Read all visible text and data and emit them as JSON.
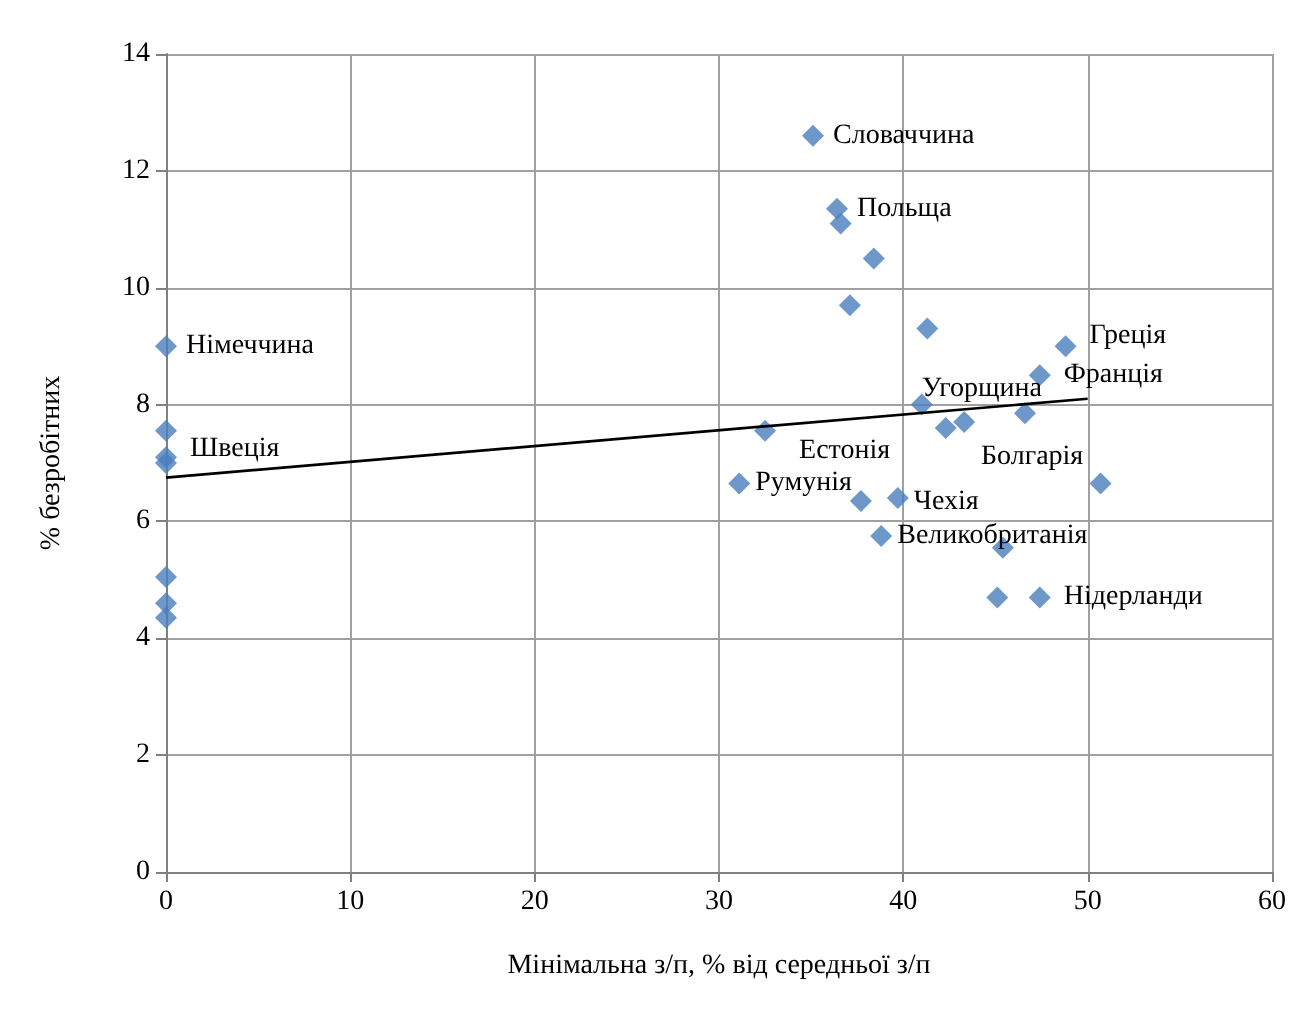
{
  "chart_data": {
    "type": "scatter",
    "xlabel": "Мінімальна з/п, % від середньої з/п",
    "ylabel": "% безробітних",
    "xlim": [
      0,
      60
    ],
    "xticks": [
      0,
      10,
      20,
      30,
      40,
      50,
      60
    ],
    "ylim": [
      0,
      14
    ],
    "yticks": [
      0,
      2,
      4,
      6,
      8,
      10,
      12,
      14
    ],
    "grid": true,
    "marker": "diamond",
    "series": [
      {
        "color": "#4a7ebb",
        "x": [
          0,
          0,
          0,
          0,
          0,
          0,
          0,
          35.1,
          36.4,
          36.6,
          38.4,
          37.1,
          41.3,
          48.8,
          47.4,
          41.0,
          42.3,
          43.3,
          46.6,
          32.5,
          50.7,
          31.1,
          37.7,
          39.7,
          38.8,
          45.4,
          45.1,
          47.4
        ],
        "values": [
          9.0,
          7.55,
          7.1,
          7.0,
          5.05,
          4.6,
          4.35,
          12.6,
          11.35,
          11.1,
          10.5,
          9.7,
          9.3,
          9.0,
          8.5,
          8.0,
          7.6,
          7.7,
          7.85,
          7.55,
          6.65,
          6.65,
          6.35,
          6.4,
          5.75,
          5.55,
          4.7,
          4.7
        ]
      },
      {
        "type": "line",
        "marker": "none",
        "color": "#000000",
        "x": [
          0,
          50
        ],
        "values": [
          6.75,
          8.1
        ]
      }
    ],
    "annotations": [
      {
        "text": "Німеччина",
        "x": 0,
        "y": 9.0
      },
      {
        "text": "Швеція",
        "x": 0,
        "y": 7.1
      },
      {
        "text": "Словаччина",
        "x": 35.1,
        "y": 12.6
      },
      {
        "text": "Польща",
        "x": 36.4,
        "y": 11.35
      },
      {
        "text": "Греція",
        "x": 48.8,
        "y": 9.0
      },
      {
        "text": "Франція",
        "x": 47.4,
        "y": 8.5
      },
      {
        "text": "Угорщина",
        "x": 41.0,
        "y": 8.0
      },
      {
        "text": "Естонія",
        "x": 32.5,
        "y": 7.55
      },
      {
        "text": "Болгарія",
        "x": 46.6,
        "y": 7.85
      },
      {
        "text": "Румунія",
        "x": 31.1,
        "y": 6.65
      },
      {
        "text": "Чехія",
        "x": 39.7,
        "y": 6.4
      },
      {
        "text": "Великобританія",
        "x": 38.8,
        "y": 5.75
      },
      {
        "text": "Нідерланди",
        "x": 47.4,
        "y": 4.7
      }
    ]
  }
}
